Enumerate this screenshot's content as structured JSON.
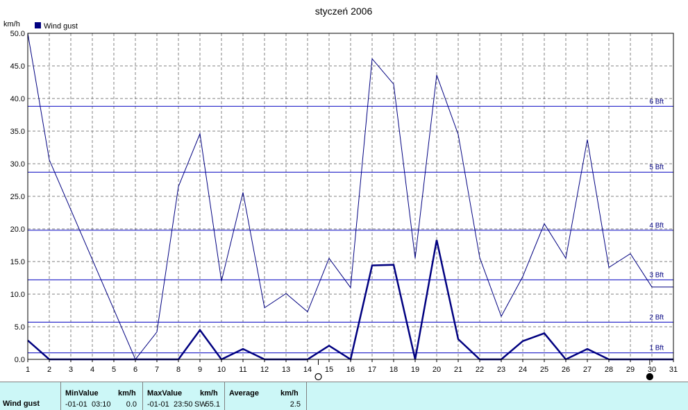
{
  "chart_data": {
    "type": "line",
    "title": "styczeń 2006",
    "ylabel": "km/h",
    "xlim": [
      1,
      31
    ],
    "ylim": [
      0,
      50
    ],
    "x_ticks": [
      1,
      2,
      3,
      4,
      5,
      6,
      7,
      8,
      9,
      10,
      11,
      12,
      13,
      14,
      15,
      16,
      17,
      18,
      19,
      20,
      21,
      22,
      23,
      24,
      25,
      26,
      27,
      28,
      29,
      30,
      31
    ],
    "y_ticks": [
      "0.0",
      "5.0",
      "10.0",
      "15.0",
      "20.0",
      "25.0",
      "30.0",
      "35.0",
      "40.0",
      "45.0",
      "50.0"
    ],
    "grid": true,
    "legend": {
      "placement": "top-left",
      "entries": [
        "Wind gust"
      ]
    },
    "series": [
      {
        "name": "Wind gust",
        "role": "max",
        "color": "#000080",
        "x": [
          1,
          2,
          6,
          7,
          8,
          9,
          10,
          11,
          12,
          13,
          14,
          15,
          16,
          17,
          18,
          19,
          20,
          21,
          22,
          23,
          24,
          25,
          26,
          27,
          28,
          29,
          30,
          31
        ],
        "values": [
          50.0,
          30.6,
          0.0,
          4.2,
          26.5,
          34.6,
          12.0,
          25.6,
          7.9,
          10.1,
          7.3,
          15.5,
          11.0,
          46.1,
          42.2,
          15.5,
          43.6,
          34.5,
          15.6,
          6.6,
          12.7,
          20.8,
          15.5,
          33.7,
          14.1,
          16.2,
          11.1,
          11.1
        ]
      },
      {
        "name": "Wind gust",
        "role": "average",
        "color": "#000080",
        "x": [
          1,
          2,
          3,
          4,
          5,
          6,
          7,
          8,
          9,
          10,
          11,
          12,
          13,
          14,
          15,
          16,
          17,
          18,
          19,
          20,
          21,
          22,
          23,
          24,
          25,
          26,
          27,
          28,
          29,
          30,
          31
        ],
        "values": [
          2.9,
          0,
          0,
          0,
          0,
          0,
          0,
          0,
          4.5,
          0,
          1.6,
          0,
          0,
          0,
          2.1,
          0,
          14.4,
          14.5,
          0,
          18.3,
          3.1,
          0,
          0,
          2.8,
          4.0,
          0,
          1.6,
          0,
          0,
          0,
          0
        ]
      }
    ],
    "reference_lines": [
      {
        "label": "1 Bft",
        "value": 1.0
      },
      {
        "label": "2 Bft",
        "value": 5.7
      },
      {
        "label": "3 Bft",
        "value": 12.2
      },
      {
        "label": "4 Bft",
        "value": 19.8
      },
      {
        "label": "5 Bft",
        "value": 28.7
      },
      {
        "label": "6 Bft",
        "value": 38.8
      }
    ],
    "moon_phases": [
      {
        "day": 14.5,
        "phase": "full"
      },
      {
        "day": 29.9,
        "phase": "new"
      }
    ]
  },
  "stats": {
    "row_label": "Wind gust",
    "min_header": "MinValue",
    "min_unit": "km/h",
    "min_date": "-01-01",
    "min_time": "03:10",
    "min_value": "0.0",
    "max_header": "MaxValue",
    "max_unit": "km/h",
    "max_date": "-01-01",
    "max_time": "23:50",
    "max_dir": "SW",
    "max_value": "55.1",
    "avg_header": "Average",
    "avg_unit": "km/h",
    "avg_value": "2.5"
  }
}
